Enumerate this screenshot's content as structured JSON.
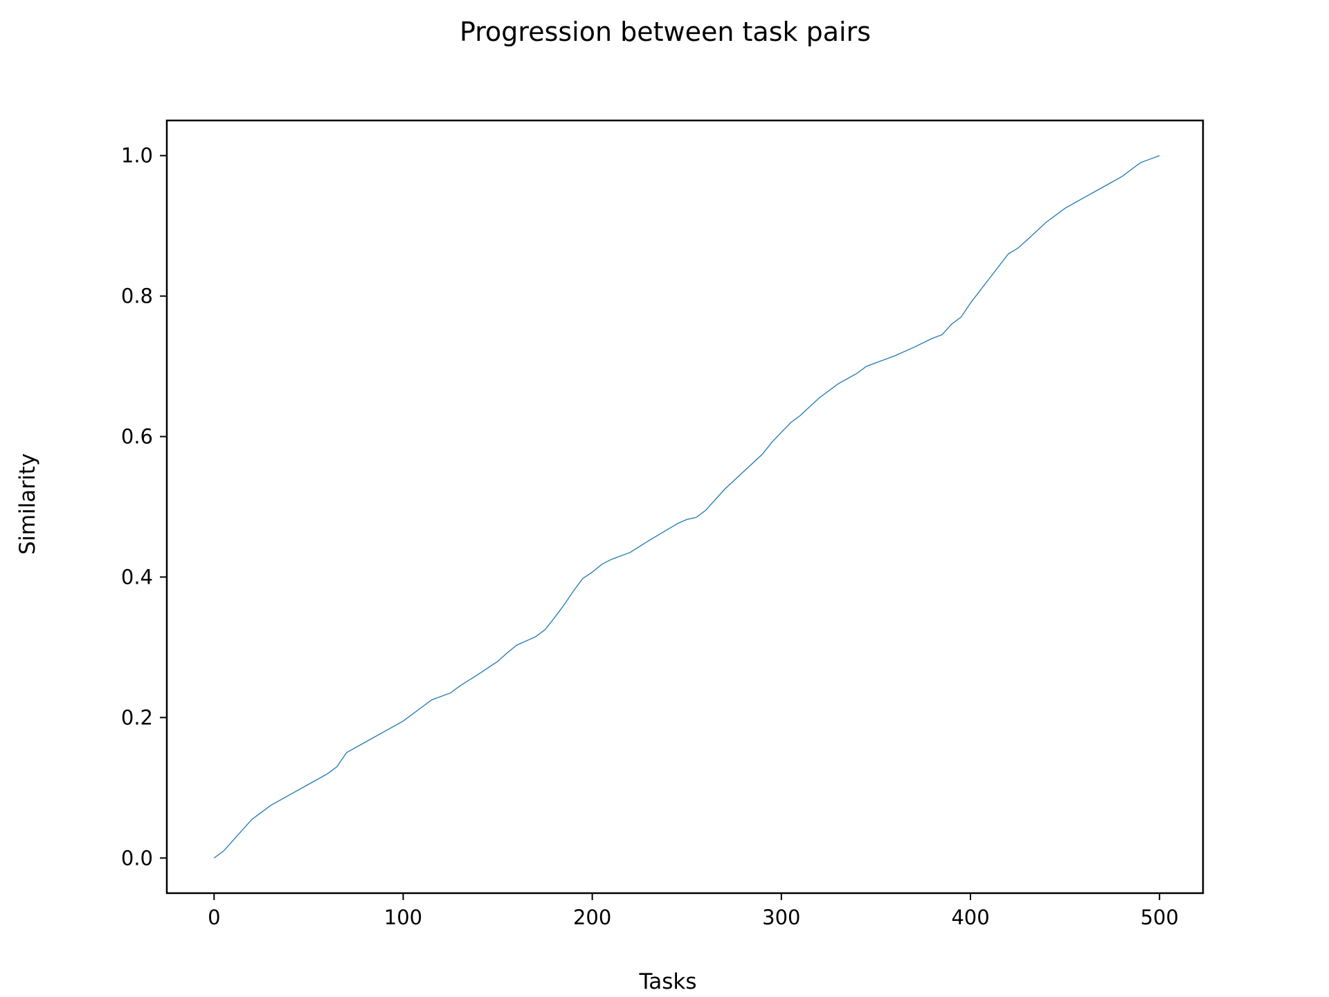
{
  "chart_data": {
    "type": "line",
    "title": "Progression between task pairs",
    "xlabel": "Tasks",
    "ylabel": "Similarity",
    "xlim": [
      -25,
      523
    ],
    "ylim": [
      -0.05,
      1.05
    ],
    "xticks": [
      0,
      100,
      200,
      300,
      400,
      500
    ],
    "xtick_labels": [
      "0",
      "100",
      "200",
      "300",
      "400",
      "500"
    ],
    "yticks": [
      0.0,
      0.2,
      0.4,
      0.6,
      0.8,
      1.0
    ],
    "ytick_labels": [
      "0.0",
      "0.2",
      "0.4",
      "0.6",
      "0.8",
      "1.0"
    ],
    "grid": false,
    "legend": "none",
    "line_color": "#1f77b4",
    "series": [
      {
        "x": [
          0,
          5,
          10,
          15,
          20,
          25,
          30,
          40,
          50,
          60,
          65,
          70,
          80,
          90,
          100,
          110,
          115,
          125,
          130,
          140,
          150,
          155,
          160,
          170,
          175,
          180,
          185,
          190,
          195,
          200,
          205,
          210,
          220,
          230,
          240,
          245,
          250,
          255,
          260,
          265,
          270,
          280,
          290,
          295,
          300,
          305,
          310,
          320,
          330,
          340,
          345,
          350,
          360,
          370,
          380,
          385,
          390,
          395,
          400,
          410,
          420,
          425,
          430,
          440,
          450,
          460,
          470,
          480,
          485,
          490,
          495,
          500
        ],
        "y": [
          0.0,
          0.01,
          0.025,
          0.04,
          0.055,
          0.065,
          0.075,
          0.09,
          0.105,
          0.12,
          0.13,
          0.15,
          0.165,
          0.18,
          0.195,
          0.215,
          0.225,
          0.235,
          0.245,
          0.262,
          0.28,
          0.292,
          0.303,
          0.315,
          0.325,
          0.342,
          0.36,
          0.38,
          0.398,
          0.407,
          0.418,
          0.425,
          0.435,
          0.452,
          0.468,
          0.476,
          0.482,
          0.485,
          0.495,
          0.51,
          0.525,
          0.55,
          0.575,
          0.592,
          0.606,
          0.62,
          0.63,
          0.655,
          0.675,
          0.69,
          0.7,
          0.705,
          0.715,
          0.727,
          0.74,
          0.745,
          0.76,
          0.77,
          0.79,
          0.825,
          0.86,
          0.868,
          0.88,
          0.905,
          0.925,
          0.94,
          0.955,
          0.97,
          0.98,
          0.99,
          0.995,
          1.0
        ]
      }
    ]
  }
}
